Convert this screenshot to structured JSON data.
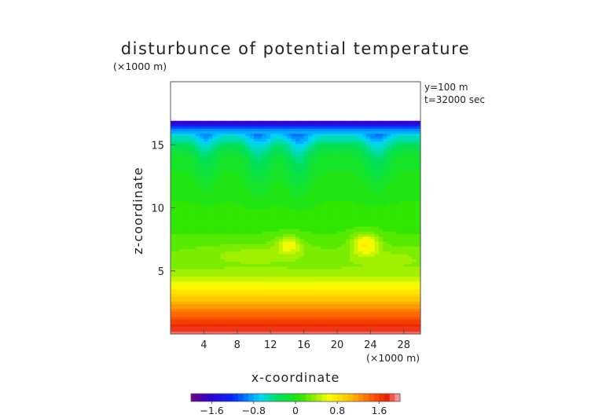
{
  "chart_data": {
    "type": "heatmap",
    "title": "disturbunce of potential temperature",
    "unit_note_top": "(×1000 m)",
    "unit_note_bottom": "(×1000 m)",
    "annotations": [
      "y=100 m",
      "t=32000 sec"
    ],
    "xlabel": "x-coordinate",
    "ylabel": "z-coordinate",
    "xlim": [
      0,
      30
    ],
    "ylim": [
      0,
      20
    ],
    "x_ticks": [
      4,
      8,
      12,
      16,
      20,
      24,
      28
    ],
    "y_ticks": [
      5,
      10,
      15
    ],
    "fill_top": 16.9,
    "color_range": [
      -2.0,
      2.0
    ],
    "colorbar_ticks": [
      -1.6,
      -0.8,
      0,
      0.8,
      1.6
    ],
    "colorbar_tick_labels": [
      "−1.6",
      "−0.8",
      "0",
      "0.8",
      "1.6"
    ],
    "vertical_profile": [
      [
        0.0,
        1.9
      ],
      [
        1.0,
        1.6
      ],
      [
        2.0,
        1.25
      ],
      [
        3.0,
        0.95
      ],
      [
        3.7,
        0.7
      ],
      [
        4.5,
        0.45
      ],
      [
        5.5,
        0.3
      ],
      [
        7.0,
        0.2
      ],
      [
        9.0,
        0.1
      ],
      [
        12.0,
        0.0
      ],
      [
        14.0,
        -0.1
      ],
      [
        15.0,
        -0.3
      ],
      [
        15.8,
        -0.6
      ],
      [
        16.4,
        -1.1
      ],
      [
        16.9,
        -1.9
      ]
    ],
    "features": [
      {
        "kind": "cool-plume",
        "x": 4.2,
        "z_top": 16.0,
        "z_bottom": 11.0,
        "width": 1.3,
        "amplitude": -0.35
      },
      {
        "kind": "cool-plume",
        "x": 10.6,
        "z_top": 16.0,
        "z_bottom": 10.5,
        "width": 1.6,
        "amplitude": -0.4
      },
      {
        "kind": "cool-plume",
        "x": 15.4,
        "z_top": 16.0,
        "z_bottom": 10.5,
        "width": 1.6,
        "amplitude": -0.45
      },
      {
        "kind": "cool-plume",
        "x": 24.8,
        "z_top": 16.0,
        "z_bottom": 11.0,
        "width": 1.6,
        "amplitude": -0.4
      },
      {
        "kind": "warm-blob",
        "x": 14.2,
        "z": 7.1,
        "rx": 1.5,
        "rz": 0.7,
        "amplitude": 0.4
      },
      {
        "kind": "warm-blob",
        "x": 23.4,
        "z": 7.2,
        "rx": 1.6,
        "rz": 0.8,
        "amplitude": 0.55
      },
      {
        "kind": "warm-band",
        "x": 10.0,
        "z": 6.4,
        "rx": 7.0,
        "rz": 0.8,
        "amplitude": 0.15
      },
      {
        "kind": "warm-band",
        "x": 26.0,
        "z": 6.2,
        "rx": 6.0,
        "rz": 0.8,
        "amplitude": 0.12
      }
    ]
  }
}
